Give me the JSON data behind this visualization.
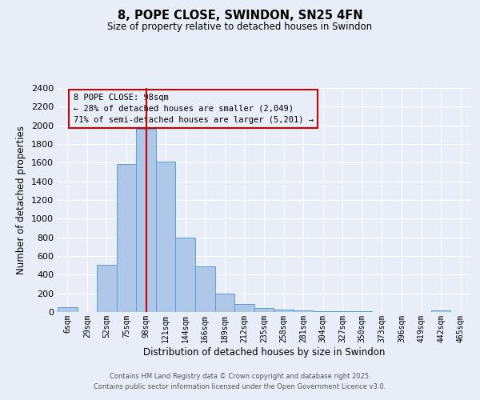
{
  "title": "8, POPE CLOSE, SWINDON, SN25 4FN",
  "subtitle": "Size of property relative to detached houses in Swindon",
  "xlabel": "Distribution of detached houses by size in Swindon",
  "ylabel": "Number of detached properties",
  "footer1": "Contains HM Land Registry data © Crown copyright and database right 2025.",
  "footer2": "Contains public sector information licensed under the Open Government Licence v3.0.",
  "bar_labels": [
    "6sqm",
    "29sqm",
    "52sqm",
    "75sqm",
    "98sqm",
    "121sqm",
    "144sqm",
    "166sqm",
    "189sqm",
    "212sqm",
    "235sqm",
    "258sqm",
    "281sqm",
    "304sqm",
    "327sqm",
    "350sqm",
    "373sqm",
    "396sqm",
    "419sqm",
    "442sqm",
    "465sqm"
  ],
  "bar_values": [
    55,
    0,
    510,
    1590,
    1960,
    1610,
    800,
    490,
    195,
    90,
    45,
    30,
    20,
    10,
    5,
    10,
    0,
    0,
    0,
    15,
    0
  ],
  "bar_color": "#aec6e8",
  "bar_edgecolor": "#5a9fd4",
  "bg_color": "#e8eef8",
  "grid_color": "#ffffff",
  "vline_color": "#cc0000",
  "annotation_title": "8 POPE CLOSE: 98sqm",
  "annotation_line1": "← 28% of detached houses are smaller (2,049)",
  "annotation_line2": "71% of semi-detached houses are larger (5,201) →",
  "annotation_box_color": "#cc0000",
  "ylim": [
    0,
    2400
  ],
  "yticks": [
    0,
    200,
    400,
    600,
    800,
    1000,
    1200,
    1400,
    1600,
    1800,
    2000,
    2200,
    2400
  ]
}
